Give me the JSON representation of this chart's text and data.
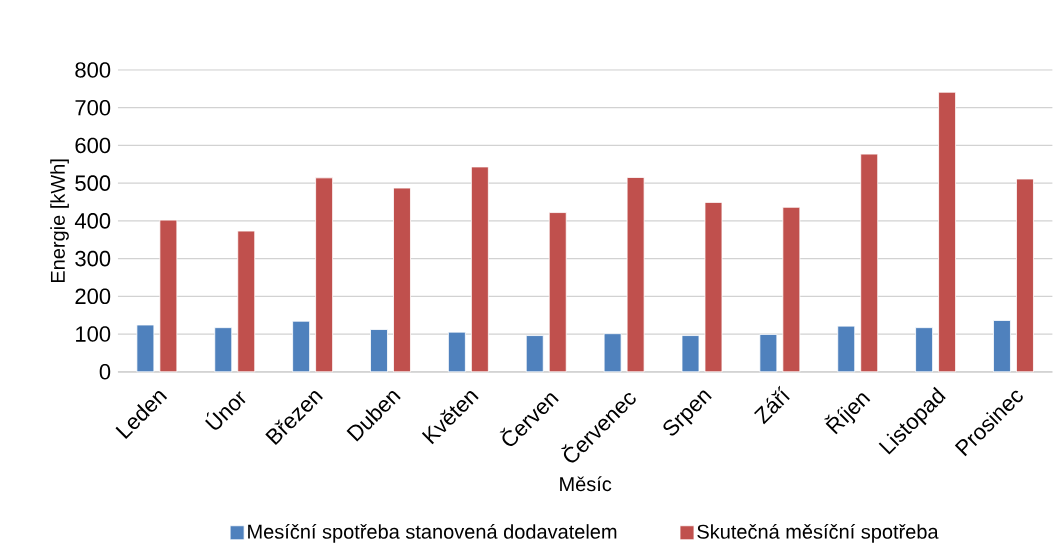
{
  "chart_data": {
    "type": "bar",
    "xlabel": "Měsíc",
    "ylabel": "Energie [kWh]",
    "categories": [
      "Leden",
      "Únor",
      "Březen",
      "Duben",
      "Květen",
      "Červen",
      "Červenec",
      "Srpen",
      "Září",
      "Říjen",
      "Listopad",
      "Prosinec"
    ],
    "series": [
      {
        "name": "Mesíční spotřeba stanovená dodavatelem",
        "color": "#4f81bd",
        "values": [
          124,
          117,
          134,
          112,
          105,
          96,
          101,
          96,
          99,
          121,
          117,
          136
        ]
      },
      {
        "name": "Skutečná měsíční spotřeba",
        "color": "#c0504d",
        "values": [
          402,
          373,
          514,
          487,
          543,
          422,
          515,
          449,
          436,
          577,
          741,
          511
        ]
      }
    ],
    "ylim": [
      0,
      800
    ],
    "yticks": [
      0,
      100,
      200,
      300,
      400,
      500,
      600,
      700,
      800
    ],
    "grid": "y",
    "legend": "bottom"
  }
}
